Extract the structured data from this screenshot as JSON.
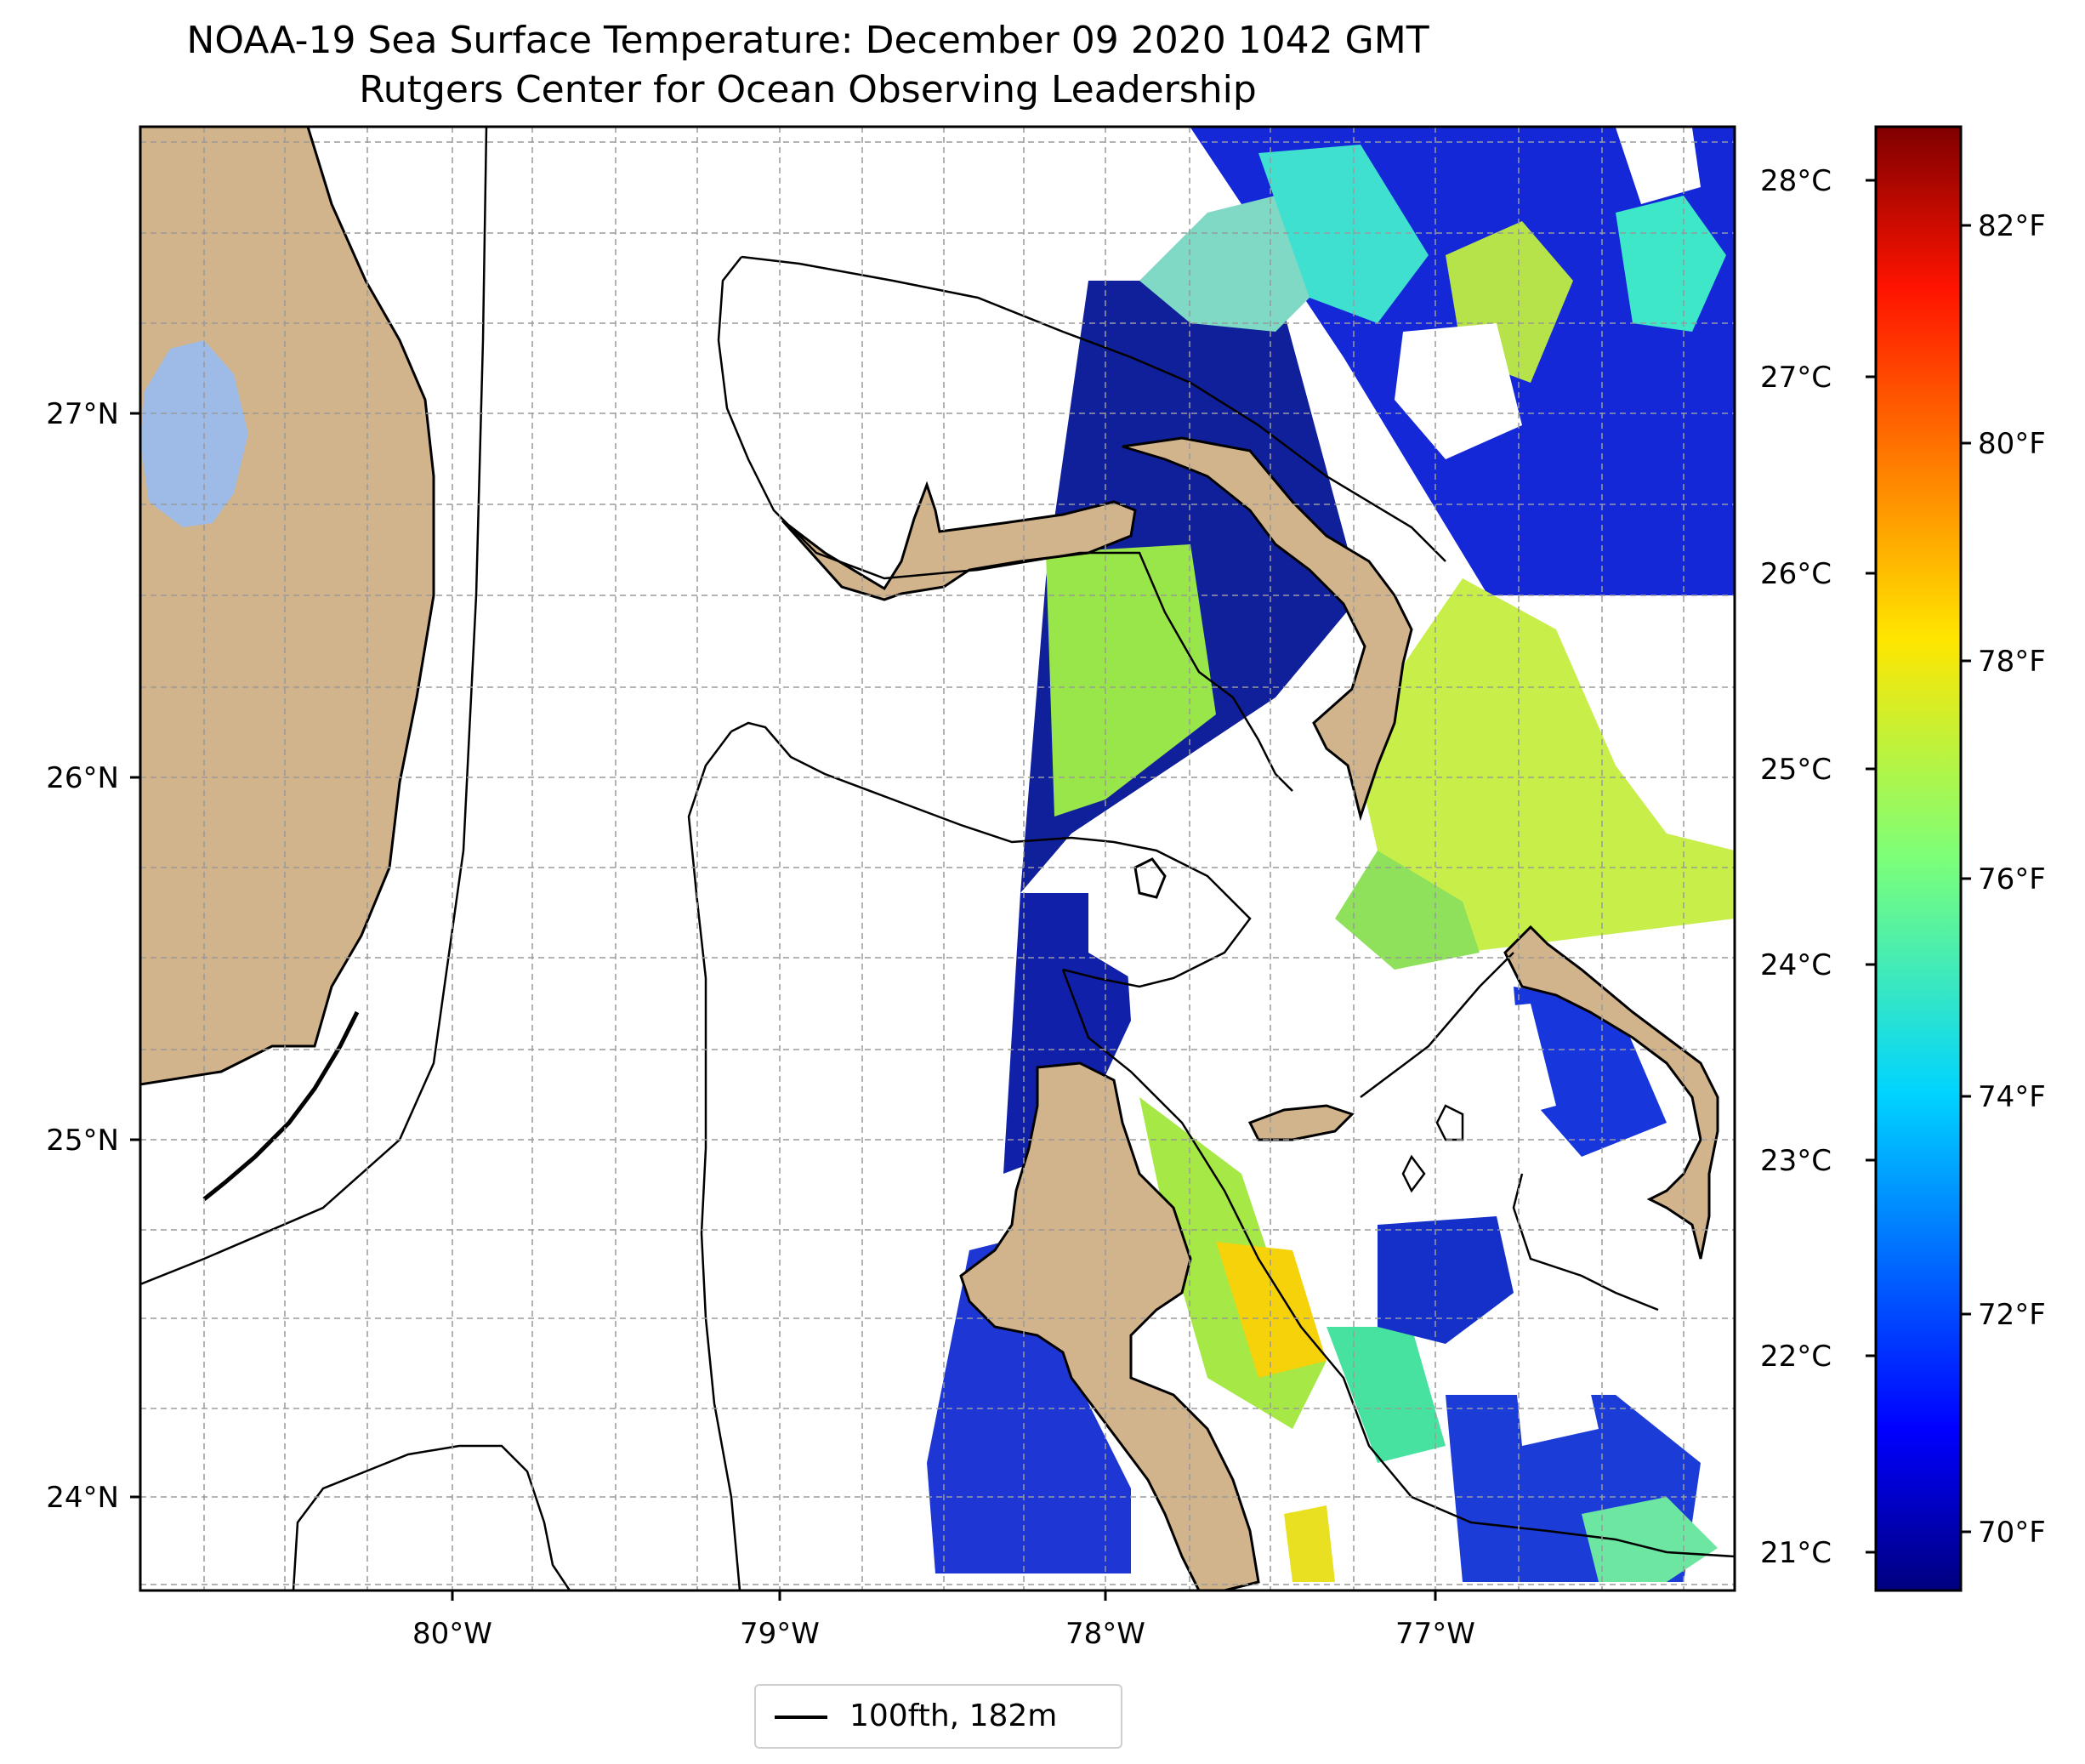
{
  "title": {
    "line1": "NOAA-19 Sea Surface Temperature: December 09 2020 1042 GMT",
    "line2": "Rutgers Center for Ocean Observing Leadership"
  },
  "map": {
    "lat_range": [
      23.75,
      27.8
    ],
    "lon_range": [
      -80.95,
      -76.08
    ],
    "lat_ticks": [
      "27°N",
      "26°N",
      "25°N",
      "24°N"
    ],
    "lon_ticks": [
      "80°W",
      "79°W",
      "78°W",
      "77°W"
    ],
    "celsius_ticks": [
      "28°C",
      "27°C",
      "26°C",
      "25°C",
      "24°C",
      "23°C",
      "22°C",
      "21°C"
    ],
    "gridlines": true,
    "land_color": "#d2b48c",
    "lake_color": "#9dbbe6",
    "contour_color": "#000000"
  },
  "colorbar": {
    "colormap": "jet",
    "range_f": [
      69.2,
      83.0
    ],
    "fahrenheit_ticks": [
      "82°F",
      "80°F",
      "78°F",
      "76°F",
      "74°F",
      "72°F",
      "70°F"
    ]
  },
  "legend": {
    "label": "100fth, 182m"
  }
}
